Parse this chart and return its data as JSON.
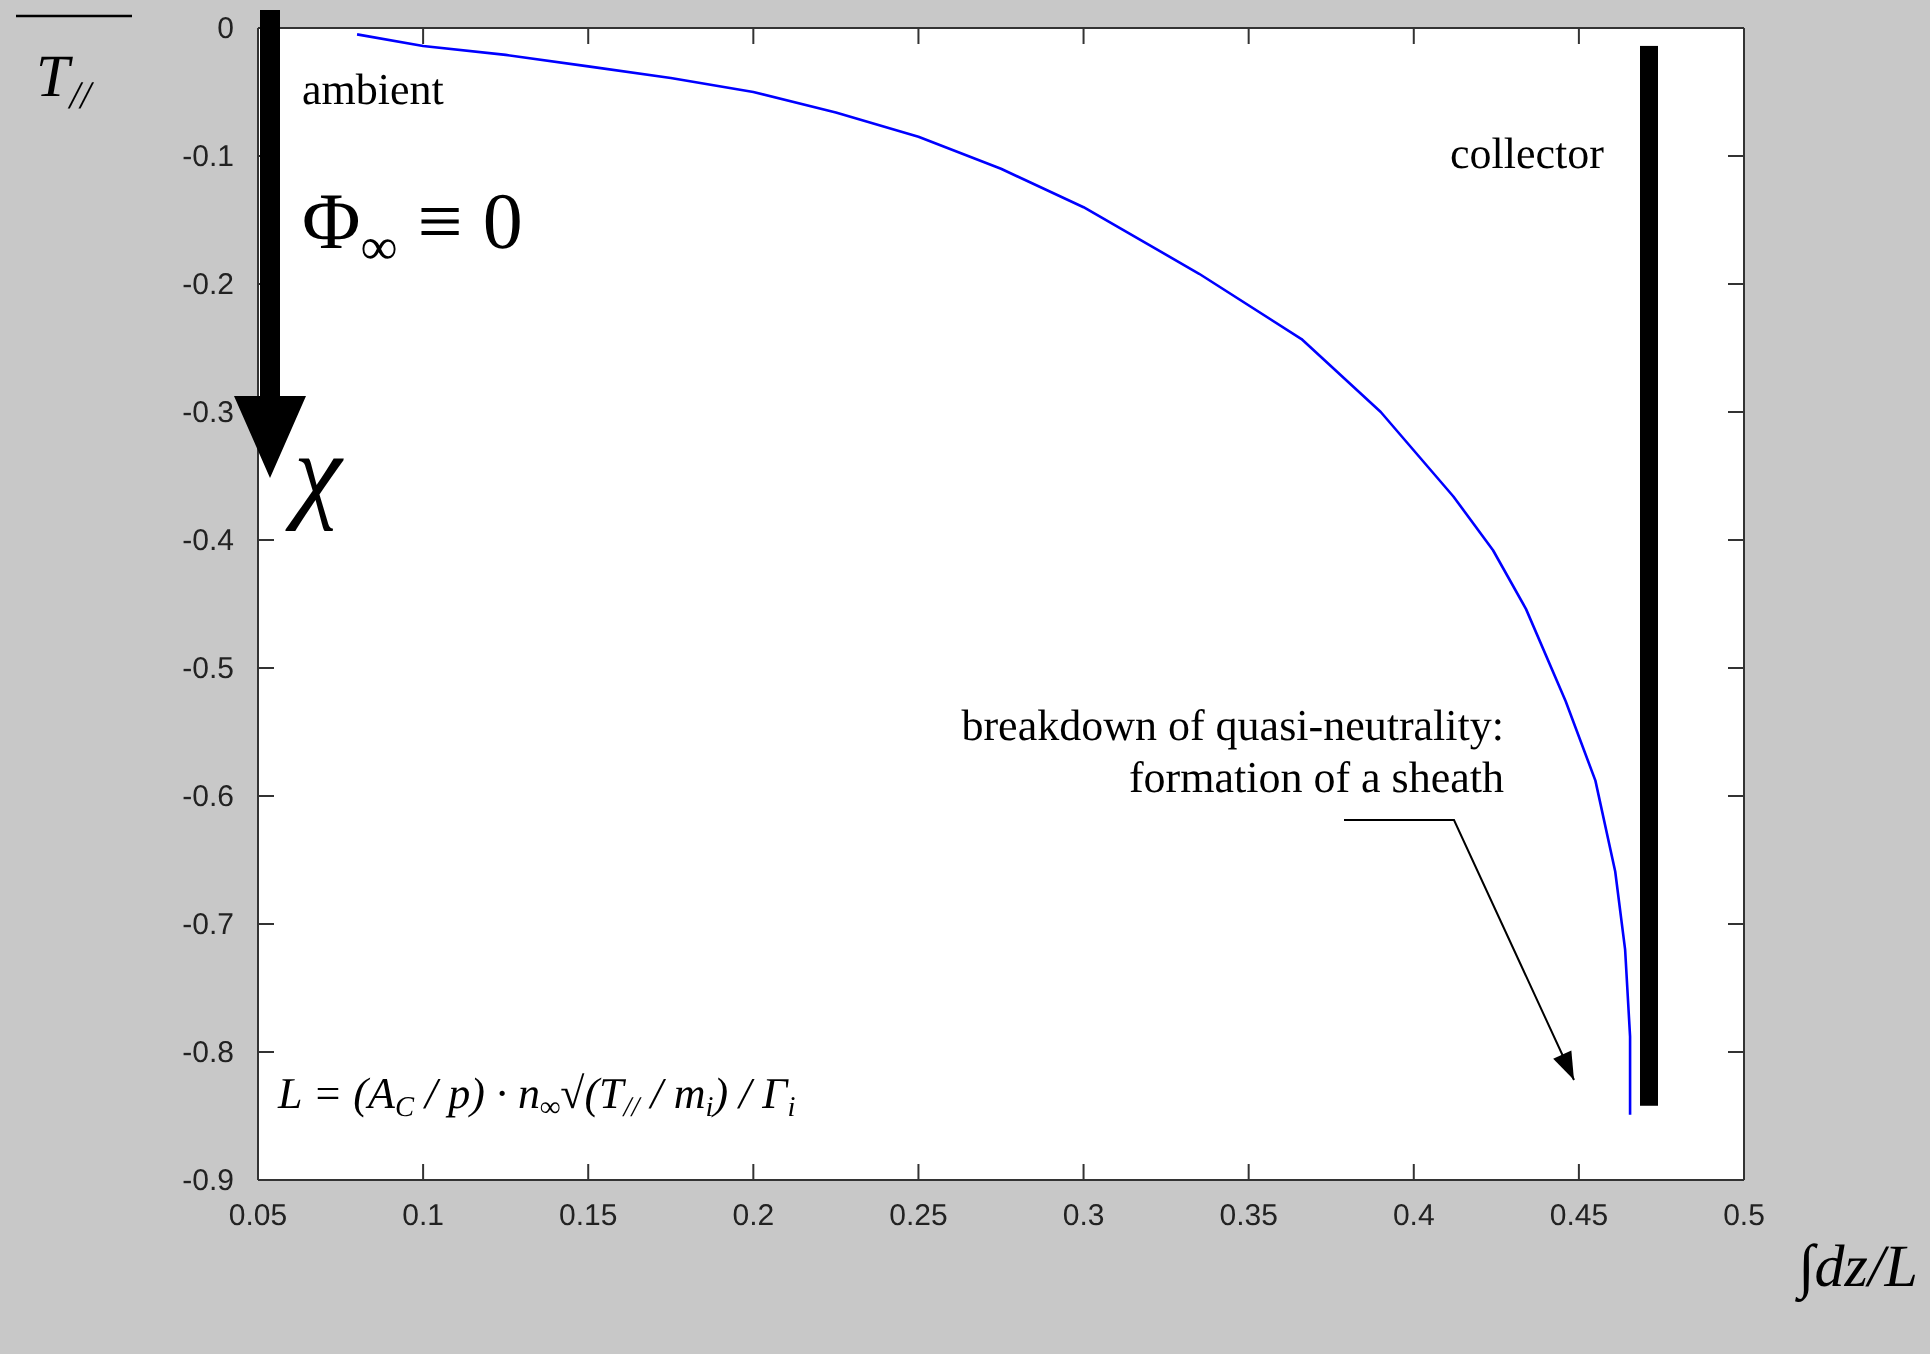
{
  "chart_data": {
    "type": "line",
    "xlabel": "∫dz/L",
    "ylabel": "T$_{//}$",
    "x": [
      0.08,
      0.1,
      0.125,
      0.15,
      0.175,
      0.2,
      0.225,
      0.25,
      0.275,
      0.3,
      0.335,
      0.366,
      0.39,
      0.412,
      0.424,
      0.434,
      0.446,
      0.455,
      0.461,
      0.464,
      0.4655,
      0.4655
    ],
    "series": [
      {
        "color": "#0000ff",
        "values": [
          -0.005,
          -0.014,
          -0.021,
          -0.03,
          -0.039,
          -0.05,
          -0.066,
          -0.085,
          -0.11,
          -0.14,
          -0.192,
          -0.243,
          -0.3,
          -0.366,
          -0.408,
          -0.454,
          -0.526,
          -0.588,
          -0.659,
          -0.72,
          -0.788,
          -0.849
        ]
      }
    ],
    "xlim": [
      0.05,
      0.5
    ],
    "ylim": [
      -0.9,
      0
    ],
    "xticks": [
      0.05,
      0.1,
      0.15,
      0.2,
      0.25,
      0.3,
      0.35,
      0.4,
      0.45,
      0.5
    ],
    "yticks": [
      -0.9,
      -0.8,
      -0.7,
      -0.6,
      -0.5,
      -0.4,
      -0.3,
      -0.2,
      -0.1,
      0
    ],
    "grid": false,
    "legend": false,
    "marker": "none",
    "line_style": "solid",
    "annotations": [
      "ambient",
      "Φ$_{∞}$ ≡ 0",
      "χ",
      "collector",
      "breakdown of quasi-neutrality:\nformation of a sheath",
      "L = (A$_{C}$ / p) · n$_{∞}$√(T$_{//}$ / m$_{i}$) / Γ$_{i}$"
    ]
  }
}
